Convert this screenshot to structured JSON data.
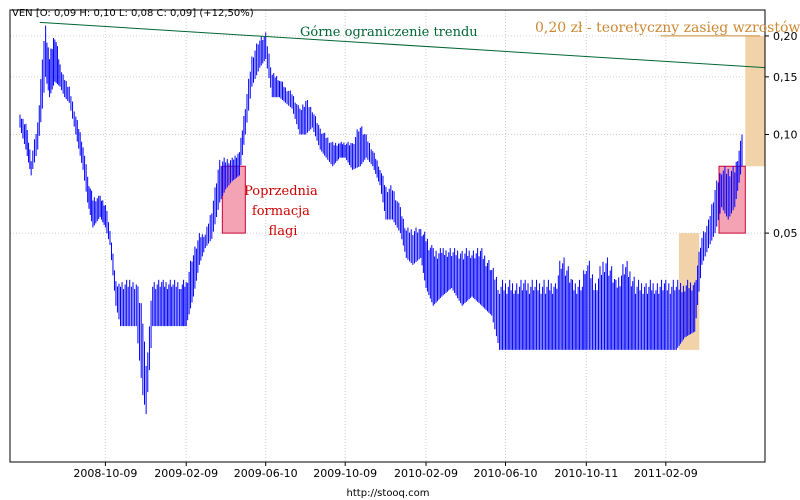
{
  "chart_data": {
    "type": "line",
    "title": "VEN [O: 0,09  H: 0,10  L: 0,08  C: 0,09] (+12,50%)",
    "source": "http://stooq.com",
    "y_scale": "log",
    "ylim": [
      0.01,
      0.24
    ],
    "xlim": [
      "2008-06-01",
      "2011-07-10"
    ],
    "x_ticks": [
      "2008-10-09",
      "2009-02-09",
      "2009-06-10",
      "2009-10-09",
      "2010-02-09",
      "2010-06-10",
      "2010-10-11",
      "2011-02-09"
    ],
    "y_ticks": [
      {
        "value": 0.2,
        "label": "0,20"
      },
      {
        "value": 0.15,
        "label": "0,15"
      },
      {
        "value": 0.1,
        "label": "0,10"
      },
      {
        "value": 0.05,
        "label": "0,05"
      }
    ],
    "series": [
      {
        "color": "#0000ff",
        "points": [
          [
            "2008-06-01",
            0.105,
            0.115
          ],
          [
            "2008-06-10",
            0.09,
            0.11
          ],
          [
            "2008-06-18",
            0.075,
            0.085
          ],
          [
            "2008-06-28",
            0.09,
            0.11
          ],
          [
            "2008-07-05",
            0.12,
            0.18
          ],
          [
            "2008-07-10",
            0.15,
            0.215
          ],
          [
            "2008-07-16",
            0.13,
            0.175
          ],
          [
            "2008-07-24",
            0.145,
            0.21
          ],
          [
            "2008-08-01",
            0.14,
            0.165
          ],
          [
            "2008-08-08",
            0.13,
            0.15
          ],
          [
            "2008-08-15",
            0.125,
            0.14
          ],
          [
            "2008-08-25",
            0.1,
            0.115
          ],
          [
            "2008-09-05",
            0.078,
            0.095
          ],
          [
            "2008-09-12",
            0.062,
            0.075
          ],
          [
            "2008-09-20",
            0.052,
            0.065
          ],
          [
            "2008-10-01",
            0.056,
            0.065
          ],
          [
            "2008-10-09",
            0.052,
            0.062
          ],
          [
            "2008-10-16",
            0.046,
            0.052
          ],
          [
            "2008-10-25",
            0.03,
            0.036
          ],
          [
            "2008-11-01",
            0.026,
            0.036
          ],
          [
            "2008-11-15",
            0.026,
            0.036
          ],
          [
            "2008-11-25",
            0.026,
            0.036
          ],
          [
            "2008-12-05",
            0.016,
            0.03
          ],
          [
            "2008-12-10",
            0.014,
            0.02
          ],
          [
            "2008-12-20",
            0.026,
            0.036
          ],
          [
            "2009-01-05",
            0.026,
            0.036
          ],
          [
            "2009-01-20",
            0.026,
            0.036
          ],
          [
            "2009-02-01",
            0.026,
            0.036
          ],
          [
            "2009-02-09",
            0.026,
            0.036
          ],
          [
            "2009-02-20",
            0.032,
            0.045
          ],
          [
            "2009-03-01",
            0.04,
            0.05
          ],
          [
            "2009-03-10",
            0.045,
            0.05
          ],
          [
            "2009-03-20",
            0.048,
            0.06
          ],
          [
            "2009-04-01",
            0.062,
            0.085
          ],
          [
            "2009-04-10",
            0.068,
            0.085
          ],
          [
            "2009-04-20",
            0.072,
            0.085
          ],
          [
            "2009-05-01",
            0.075,
            0.09
          ],
          [
            "2009-05-10",
            0.1,
            0.125
          ],
          [
            "2009-05-20",
            0.14,
            0.175
          ],
          [
            "2009-06-01",
            0.16,
            0.2
          ],
          [
            "2009-06-10",
            0.17,
            0.205
          ],
          [
            "2009-06-20",
            0.13,
            0.155
          ],
          [
            "2009-07-01",
            0.13,
            0.15
          ],
          [
            "2009-07-10",
            0.125,
            0.14
          ],
          [
            "2009-07-20",
            0.12,
            0.135
          ],
          [
            "2009-08-01",
            0.1,
            0.12
          ],
          [
            "2009-08-10",
            0.1,
            0.13
          ],
          [
            "2009-08-20",
            0.105,
            0.12
          ],
          [
            "2009-09-01",
            0.09,
            0.105
          ],
          [
            "2009-09-10",
            0.085,
            0.1
          ],
          [
            "2009-09-20",
            0.08,
            0.095
          ],
          [
            "2009-10-01",
            0.085,
            0.095
          ],
          [
            "2009-10-09",
            0.085,
            0.095
          ],
          [
            "2009-10-20",
            0.078,
            0.095
          ],
          [
            "2009-11-01",
            0.08,
            0.11
          ],
          [
            "2009-11-10",
            0.085,
            0.1
          ],
          [
            "2009-11-20",
            0.08,
            0.09
          ],
          [
            "2009-12-01",
            0.07,
            0.08
          ],
          [
            "2009-12-10",
            0.055,
            0.07
          ],
          [
            "2009-12-20",
            0.055,
            0.07
          ],
          [
            "2010-01-01",
            0.05,
            0.06
          ],
          [
            "2010-01-10",
            0.042,
            0.052
          ],
          [
            "2010-01-20",
            0.04,
            0.052
          ],
          [
            "2010-02-01",
            0.042,
            0.052
          ],
          [
            "2010-02-09",
            0.034,
            0.05
          ],
          [
            "2010-02-20",
            0.03,
            0.045
          ],
          [
            "2010-03-05",
            0.032,
            0.045
          ],
          [
            "2010-03-20",
            0.034,
            0.045
          ],
          [
            "2010-04-05",
            0.03,
            0.045
          ],
          [
            "2010-04-20",
            0.032,
            0.045
          ],
          [
            "2010-05-05",
            0.03,
            0.045
          ],
          [
            "2010-05-20",
            0.028,
            0.04
          ],
          [
            "2010-06-01",
            0.022,
            0.036
          ],
          [
            "2010-06-10",
            0.022,
            0.036
          ],
          [
            "2010-06-25",
            0.022,
            0.036
          ],
          [
            "2010-07-10",
            0.022,
            0.036
          ],
          [
            "2010-07-25",
            0.022,
            0.036
          ],
          [
            "2010-08-10",
            0.022,
            0.036
          ],
          [
            "2010-08-25",
            0.022,
            0.036
          ],
          [
            "2010-09-05",
            0.022,
            0.045
          ],
          [
            "2010-09-20",
            0.022,
            0.036
          ],
          [
            "2010-10-05",
            0.022,
            0.036
          ],
          [
            "2010-10-11",
            0.022,
            0.044
          ],
          [
            "2010-10-25",
            0.022,
            0.036
          ],
          [
            "2010-11-10",
            0.022,
            0.045
          ],
          [
            "2010-11-25",
            0.022,
            0.036
          ],
          [
            "2010-12-10",
            0.022,
            0.042
          ],
          [
            "2010-12-25",
            0.022,
            0.036
          ],
          [
            "2011-01-10",
            0.022,
            0.036
          ],
          [
            "2011-01-25",
            0.022,
            0.036
          ],
          [
            "2011-02-09",
            0.022,
            0.036
          ],
          [
            "2011-02-25",
            0.022,
            0.036
          ],
          [
            "2011-03-10",
            0.024,
            0.036
          ],
          [
            "2011-03-25",
            0.025,
            0.036
          ],
          [
            "2011-04-05",
            0.04,
            0.05
          ],
          [
            "2011-04-15",
            0.045,
            0.055
          ],
          [
            "2011-04-25",
            0.05,
            0.07
          ],
          [
            "2011-05-05",
            0.06,
            0.08
          ],
          [
            "2011-05-15",
            0.055,
            0.08
          ],
          [
            "2011-05-25",
            0.06,
            0.08
          ],
          [
            "2011-06-05",
            0.08,
            0.1
          ]
        ]
      }
    ],
    "trend_line": {
      "label": "Górne ograniczenie trendu",
      "color": "#006633",
      "from": [
        "2008-07-01",
        0.22
      ],
      "to": [
        "2011-07-10",
        0.16
      ]
    },
    "target": {
      "label": "0,20 zł - teoretyczny zasięg wzrostów",
      "color": "#cc8833",
      "level": 0.2,
      "from": "2011-02-01"
    },
    "flags": [
      {
        "label": "Poprzednia formacja flagi",
        "color": "#cc0000",
        "x_range": [
          "2009-04-05",
          "2009-05-10"
        ],
        "y_range": [
          0.05,
          0.08
        ]
      },
      {
        "x_range": [
          "2011-05-01",
          "2011-06-10"
        ],
        "y_range": [
          0.05,
          0.08
        ]
      }
    ],
    "projections": [
      {
        "x_range": [
          "2011-03-01",
          "2011-04-01"
        ],
        "y_range": [
          0.022,
          0.05
        ]
      },
      {
        "x_range": [
          "2011-06-10",
          "2011-07-10"
        ],
        "y_range": [
          0.08,
          0.2
        ]
      }
    ]
  }
}
